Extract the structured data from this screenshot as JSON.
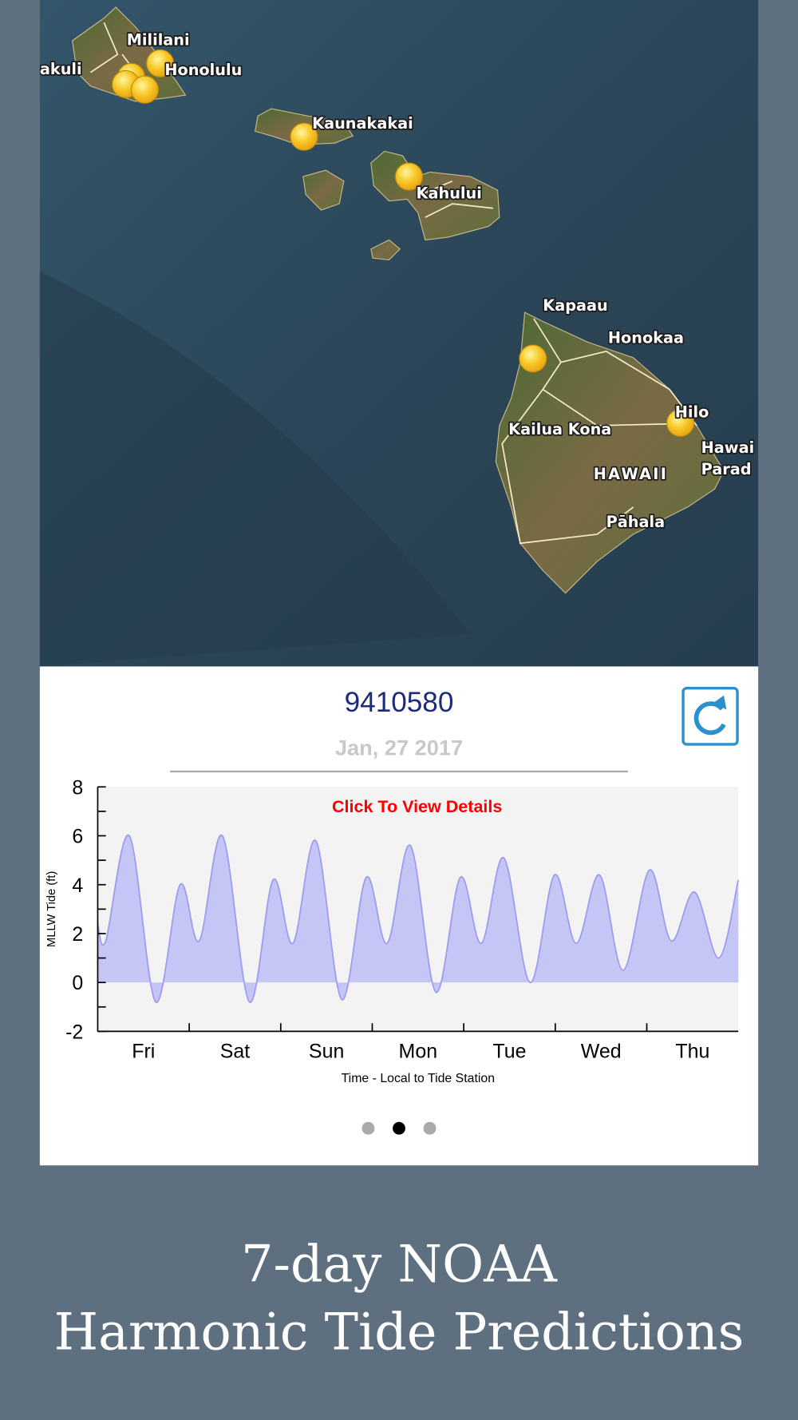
{
  "map": {
    "labels": [
      "akuli",
      "Mililani",
      "Honolulu",
      "Kaunakakai",
      "Kahului",
      "Kapaau",
      "Honokaa",
      "Hilo",
      "Kailua Kona",
      "HAWAII",
      "Hawai",
      "Parad",
      "Pāhala"
    ]
  },
  "station": {
    "id": "9410580",
    "date": "Jan, 27 2017"
  },
  "chart_data": {
    "type": "area",
    "annotation": "Click To View Details",
    "ylabel": "MLLW Tide (ft)",
    "xlabel": "Time - Local to Tide Station",
    "categories": [
      "Fri",
      "Sat",
      "Sun",
      "Mon",
      "Tue",
      "Wed",
      "Thu"
    ],
    "x": [
      0,
      2.1,
      8.3,
      15.2,
      21.6,
      26.6,
      32.7,
      39.8,
      46,
      51.2,
      57.2,
      64,
      70.4,
      75.9,
      82,
      88.7,
      95.1,
      100.6,
      106.5,
      113.4,
      119.8,
      125.5,
      131.6,
      137.8,
      144.7,
      150.4,
      156.5,
      162.9,
      168
    ],
    "series": [
      {
        "name": "Tide",
        "color": "#9a9aee",
        "values": [
          2.4,
          1.7,
          6.0,
          -0.8,
          4.0,
          1.7,
          6.0,
          -0.8,
          4.2,
          1.6,
          5.8,
          -0.7,
          4.3,
          1.6,
          5.6,
          -0.4,
          4.3,
          1.6,
          5.1,
          0,
          4.4,
          1.6,
          4.4,
          0.5,
          4.6,
          1.7,
          3.7,
          1.0,
          4.2
        ]
      }
    ],
    "xlim": [
      0,
      168
    ],
    "xticks": [
      24,
      48,
      72,
      96,
      120,
      144
    ],
    "ylim": [
      -2,
      8
    ],
    "yticks": [
      -2,
      0,
      2,
      4,
      6,
      8
    ],
    "yminorticks": [
      -1,
      1,
      3,
      5,
      7
    ]
  },
  "caption": [
    "7-day NOAA",
    "Harmonic Tide Predictions"
  ]
}
